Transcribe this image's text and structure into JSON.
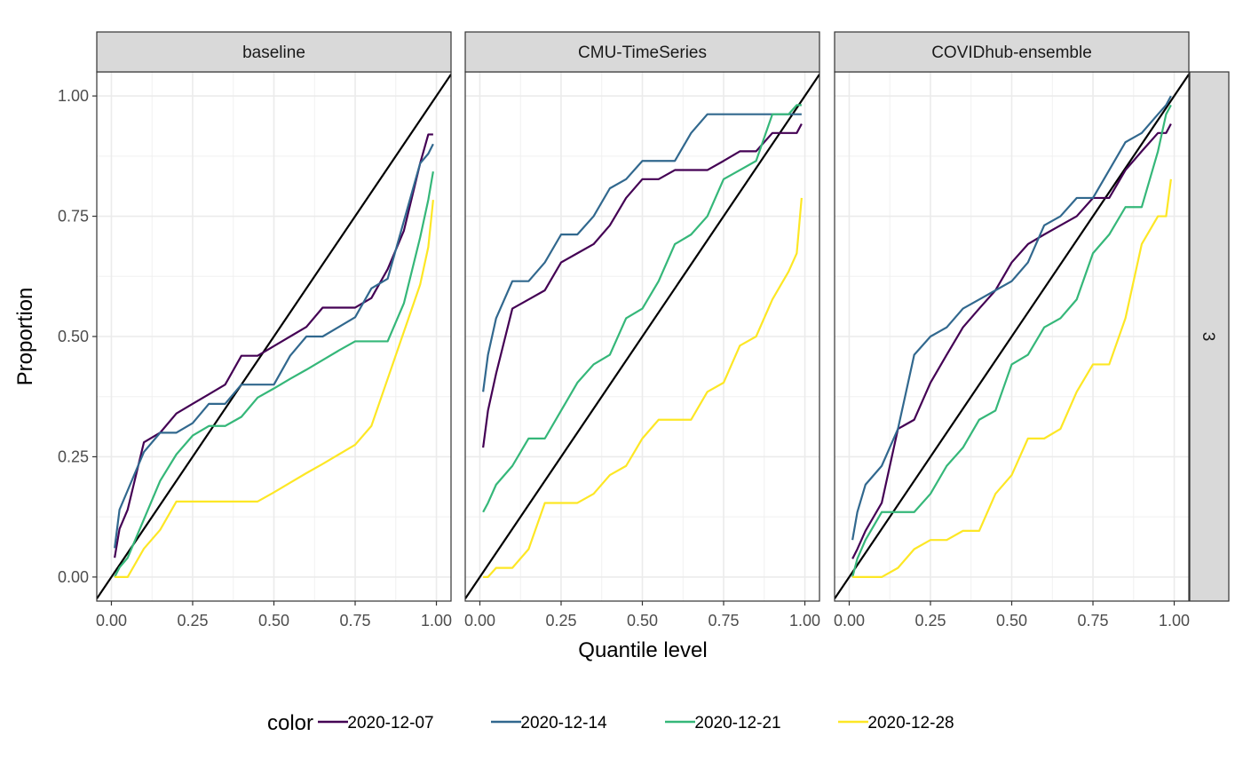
{
  "chart_data": {
    "type": "line",
    "xlabel": "Quantile level",
    "ylabel": "Proportion",
    "xlim": [
      -0.045,
      1.045
    ],
    "ylim": [
      -0.05,
      1.05
    ],
    "x_ticks": [
      0,
      0.25,
      0.5,
      0.75,
      1
    ],
    "x_tick_labels": [
      "0.00",
      "0.25",
      "0.50",
      "0.75",
      "1.00"
    ],
    "y_ticks": [
      0,
      0.25,
      0.5,
      0.75,
      1
    ],
    "y_tick_labels": [
      "0.00",
      "0.25",
      "0.50",
      "0.75",
      "1.00"
    ],
    "grid": true,
    "reference_line": "y = x",
    "row_strip": "3",
    "legend": {
      "title": "color",
      "position": "bottom",
      "entries": [
        {
          "label": "2020-12-07",
          "color": "#440154"
        },
        {
          "label": "2020-12-14",
          "color": "#31688E"
        },
        {
          "label": "2020-12-21",
          "color": "#35B779"
        },
        {
          "label": "2020-12-28",
          "color": "#FDE725"
        }
      ]
    },
    "quantiles": [
      0.01,
      0.025,
      0.05,
      0.1,
      0.15,
      0.2,
      0.25,
      0.3,
      0.35,
      0.4,
      0.45,
      0.5,
      0.55,
      0.6,
      0.65,
      0.7,
      0.75,
      0.8,
      0.85,
      0.9,
      0.95,
      0.975,
      0.99
    ],
    "panels": [
      {
        "name": "baseline",
        "series": [
          {
            "name": "2020-12-07",
            "values": [
              0.04,
              0.1,
              0.14,
              0.28,
              0.3,
              0.34,
              0.36,
              0.38,
              0.4,
              0.46,
              0.46,
              0.48,
              0.5,
              0.52,
              0.56,
              0.56,
              0.56,
              0.58,
              0.64,
              0.72,
              0.86,
              0.92,
              0.92
            ]
          },
          {
            "name": "2020-12-14",
            "values": [
              0.06,
              0.14,
              0.18,
              0.26,
              0.3,
              0.3,
              0.32,
              0.36,
              0.36,
              0.4,
              0.4,
              0.4,
              0.46,
              0.5,
              0.5,
              0.52,
              0.54,
              0.6,
              0.62,
              0.74,
              0.86,
              0.88,
              0.9
            ]
          },
          {
            "name": "2020-12-21",
            "values": [
              0.0,
              0.02,
              0.04,
              0.12,
              0.2,
              0.255,
              0.294,
              0.314,
              0.314,
              0.333,
              0.373,
              0.392,
              0.412,
              0.431,
              0.451,
              0.471,
              0.49,
              0.49,
              0.49,
              0.569,
              0.706,
              0.784,
              0.843
            ]
          },
          {
            "name": "2020-12-28",
            "values": [
              0.0,
              0.0,
              0.0,
              0.059,
              0.098,
              0.157,
              0.157,
              0.157,
              0.157,
              0.157,
              0.157,
              0.176,
              0.196,
              0.216,
              0.235,
              0.255,
              0.275,
              0.314,
              0.412,
              0.51,
              0.608,
              0.686,
              0.784
            ]
          }
        ]
      },
      {
        "name": "CMU-TimeSeries",
        "series": [
          {
            "name": "2020-12-07",
            "values": [
              0.269,
              0.346,
              0.423,
              0.558,
              0.577,
              0.596,
              0.654,
              0.673,
              0.692,
              0.731,
              0.788,
              0.827,
              0.827,
              0.846,
              0.846,
              0.846,
              0.865,
              0.885,
              0.885,
              0.923,
              0.923,
              0.923,
              0.942
            ]
          },
          {
            "name": "2020-12-14",
            "values": [
              0.385,
              0.462,
              0.538,
              0.615,
              0.615,
              0.654,
              0.712,
              0.712,
              0.75,
              0.808,
              0.827,
              0.865,
              0.865,
              0.865,
              0.923,
              0.962,
              0.962,
              0.962,
              0.962,
              0.962,
              0.962,
              0.962,
              0.962
            ]
          },
          {
            "name": "2020-12-21",
            "values": [
              0.135,
              0.154,
              0.192,
              0.231,
              0.288,
              0.288,
              0.346,
              0.404,
              0.442,
              0.462,
              0.538,
              0.558,
              0.615,
              0.692,
              0.712,
              0.75,
              0.827,
              0.846,
              0.865,
              0.962,
              0.962,
              0.981,
              0.981
            ]
          },
          {
            "name": "2020-12-28",
            "values": [
              0.0,
              0.0,
              0.019,
              0.019,
              0.058,
              0.154,
              0.154,
              0.154,
              0.173,
              0.212,
              0.231,
              0.288,
              0.327,
              0.327,
              0.327,
              0.385,
              0.404,
              0.481,
              0.5,
              0.577,
              0.635,
              0.673,
              0.788
            ]
          }
        ]
      },
      {
        "name": "COVIDhub-ensemble",
        "series": [
          {
            "name": "2020-12-07",
            "values": [
              0.038,
              0.058,
              0.096,
              0.154,
              0.308,
              0.327,
              0.404,
              0.462,
              0.519,
              0.558,
              0.596,
              0.654,
              0.692,
              0.712,
              0.731,
              0.75,
              0.788,
              0.788,
              0.846,
              0.885,
              0.923,
              0.923,
              0.942
            ]
          },
          {
            "name": "2020-12-14",
            "values": [
              0.077,
              0.135,
              0.192,
              0.231,
              0.308,
              0.462,
              0.5,
              0.519,
              0.558,
              0.577,
              0.596,
              0.615,
              0.654,
              0.731,
              0.75,
              0.788,
              0.788,
              0.846,
              0.904,
              0.923,
              0.962,
              0.981,
              1.0
            ]
          },
          {
            "name": "2020-12-21",
            "values": [
              0.0,
              0.038,
              0.077,
              0.135,
              0.135,
              0.135,
              0.173,
              0.231,
              0.269,
              0.327,
              0.346,
              0.442,
              0.462,
              0.519,
              0.538,
              0.577,
              0.673,
              0.712,
              0.769,
              0.769,
              0.885,
              0.962,
              0.981
            ]
          },
          {
            "name": "2020-12-28",
            "values": [
              0.0,
              0.0,
              0.0,
              0.0,
              0.019,
              0.058,
              0.077,
              0.077,
              0.096,
              0.096,
              0.173,
              0.212,
              0.288,
              0.288,
              0.308,
              0.385,
              0.442,
              0.442,
              0.538,
              0.692,
              0.75,
              0.75,
              0.827
            ]
          }
        ]
      }
    ]
  }
}
